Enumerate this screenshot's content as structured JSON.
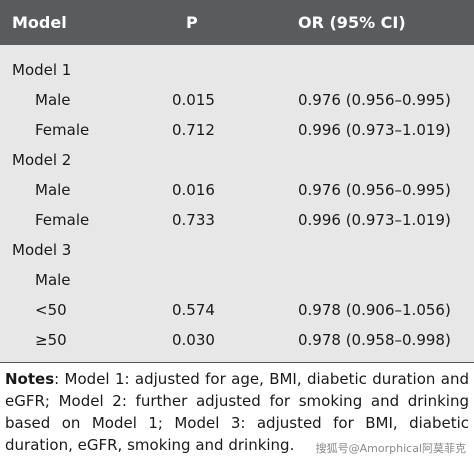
{
  "table": {
    "header": [
      "Model",
      "P",
      "OR (95% CI)"
    ],
    "groups": [
      {
        "label": "Model 1",
        "rows": [
          {
            "label": "Male",
            "p": "0.015",
            "or": "0.976 (0.956–0.995)"
          },
          {
            "label": "Female",
            "p": "0.712",
            "or": "0.996 (0.973–1.019)"
          }
        ]
      },
      {
        "label": "Model 2",
        "rows": [
          {
            "label": "Male",
            "p": "0.016",
            "or": "0.976 (0.956–0.995)"
          },
          {
            "label": "Female",
            "p": "0.733",
            "or": "0.996 (0.973–1.019)"
          }
        ]
      },
      {
        "label": "Model 3",
        "rows": [
          {
            "label": "Male"
          },
          {
            "label": "<50",
            "p": "0.574",
            "or": "0.978 (0.906–1.056)"
          },
          {
            "label": "≥50",
            "p": "0.030",
            "or": "0.978 (0.958–0.998)"
          }
        ]
      }
    ]
  },
  "notes": {
    "label": "Notes",
    "text": ": Model 1: adjusted for age, BMI, diabetic duration and eGFR; Model 2: further adjusted for smoking and drinking based on Model 1; Model 3: adjusted for BMI, diabetic duration, eGFR, smoking and drinking."
  },
  "watermark": "搜狐号@Amorphical阿莫菲克"
}
